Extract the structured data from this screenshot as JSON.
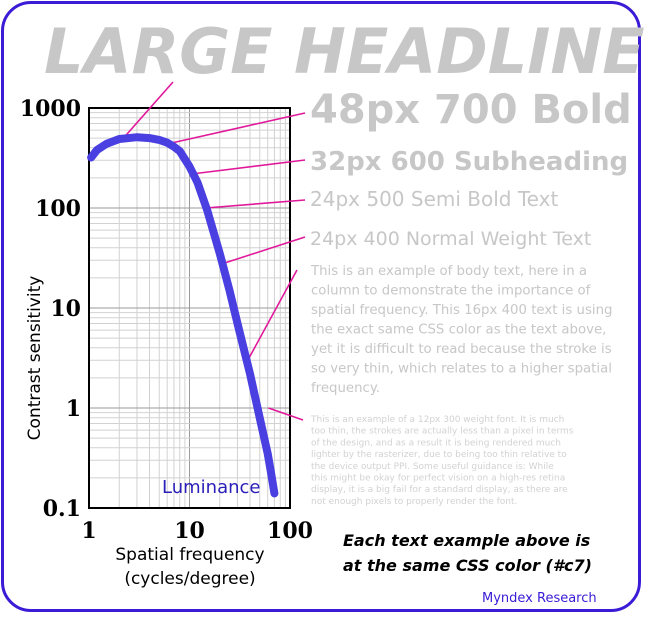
{
  "headline": "LARGE HEADLINE",
  "samples": [
    {
      "label": "48px 700 Bold"
    },
    {
      "label": "32px 600 Subheading"
    },
    {
      "label": "24px 500 Semi Bold Text"
    },
    {
      "label": "24px 400 Normal Weight Text"
    }
  ],
  "body_16": [
    "This is an example of body text, here in a",
    "column to demonstrate the importance of",
    "spatial frequency. This 16px 400 text is using",
    "the exact same CSS color as the text above,",
    "yet it is difficult to read because the stroke is",
    "so very thin, which relates to a higher spatial",
    "frequency."
  ],
  "body_12": [
    "This is an example of a 12px 300 weight font. It is much",
    "too thin, the strokes are actually less than a pixel in terms",
    "of the design, and as a result it is being rendered much",
    "lighter by the rasterizer, due to being too thin relative to",
    "the device output PPI. Some useful guidance is: While",
    "this might be okay for perfect vision on a high-res retina",
    "display, it is a big fail for a standard display, as there are",
    "not enough pixels to properly render the font."
  ],
  "note": [
    "Each text example above is",
    "at the same CSS color (#c7)"
  ],
  "credit": "Myndex Research",
  "colors": {
    "frame": "#3b1bd6",
    "curve": "#4a3fe0",
    "leader": "#e0189a",
    "sample_text": "#c7c7c7"
  },
  "chart_data": {
    "type": "line",
    "xscale": "log",
    "yscale": "log",
    "xlim": [
      1,
      100
    ],
    "ylim": [
      0.1,
      1000
    ],
    "xlabel": [
      "Spatial frequency",
      "(cycles/degree)"
    ],
    "ylabel": "Contrast sensitivity",
    "x_ticks": [
      "1",
      "10",
      "100"
    ],
    "y_ticks": [
      "0.1",
      "1",
      "10",
      "100",
      "1000"
    ],
    "grid": true,
    "series": [
      {
        "name": "Luminance",
        "x": [
          1.05,
          1.2,
          1.5,
          2,
          3,
          4,
          5,
          6,
          7,
          8,
          10,
          12,
          15,
          20,
          25,
          30,
          40,
          50,
          60,
          65,
          70
        ],
        "y": [
          320,
          380,
          440,
          490,
          510,
          500,
          480,
          450,
          410,
          370,
          260,
          180,
          95,
          35,
          15,
          7,
          2.2,
          0.8,
          0.35,
          0.22,
          0.14
        ]
      }
    ],
    "leader_points": [
      {
        "x": 2.2,
        "y": 500
      },
      {
        "x": 6.2,
        "y": 440
      },
      {
        "x": 11,
        "y": 220
      },
      {
        "x": 14.5,
        "y": 100
      },
      {
        "x": 22,
        "y": 28
      },
      {
        "x": 38,
        "y": 3
      },
      {
        "x": 61,
        "y": 1
      }
    ]
  }
}
